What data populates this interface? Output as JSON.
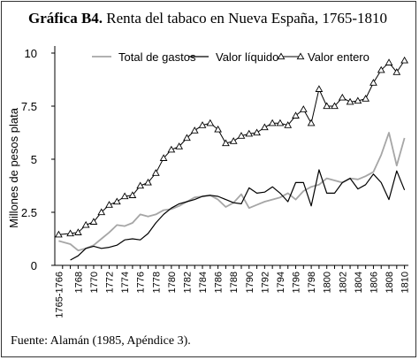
{
  "chart_data": {
    "type": "line",
    "title_bold": "Gráfica B4.",
    "title_rest": " Renta del tabaco en Nueva España, 1765-1810",
    "ylabel": "Millones de pesos plata",
    "xlabel": "",
    "source": "Fuente: Alamán (1985, Apéndice 3).",
    "ylim": [
      0,
      10
    ],
    "yticks": [
      0,
      2.5,
      5,
      7.5,
      10
    ],
    "ytick_labels": [
      "0",
      "2.5",
      "5",
      "7.5",
      "10"
    ],
    "x_tick_labels": [
      "1765-1766",
      "1768",
      "1770",
      "1772",
      "1774",
      "1776",
      "1778",
      "1780",
      "1782",
      "1784",
      "1786",
      "1788",
      "1790",
      "1792",
      "1794",
      "1796",
      "1798",
      "1800",
      "1802",
      "1804",
      "1806",
      "1808",
      "1810"
    ],
    "x_tick_positions": [
      1765.5,
      1768,
      1770,
      1772,
      1774,
      1776,
      1778,
      1780,
      1782,
      1784,
      1786,
      1788,
      1790,
      1792,
      1794,
      1796,
      1798,
      1800,
      1802,
      1804,
      1806,
      1808,
      1810
    ],
    "xlim": [
      1765,
      1810.5
    ],
    "grid": false,
    "legend_position": "top",
    "series": [
      {
        "name": "Total de gastos",
        "color": "#a6a6a6",
        "marker": "none",
        "x": [
          1765.5,
          1767,
          1768,
          1769,
          1770,
          1771,
          1772,
          1773,
          1774,
          1775,
          1776,
          1777,
          1778,
          1779,
          1780,
          1781,
          1782,
          1783,
          1784,
          1785,
          1786,
          1787,
          1788,
          1789,
          1790,
          1791,
          1792,
          1793,
          1794,
          1795,
          1796,
          1797,
          1798,
          1799,
          1800,
          1801,
          1802,
          1803,
          1804,
          1805,
          1806,
          1807,
          1808,
          1809,
          1810
        ],
        "values": [
          1.15,
          1.0,
          0.7,
          0.8,
          0.95,
          1.25,
          1.55,
          1.9,
          1.85,
          2.0,
          2.4,
          2.3,
          2.4,
          2.6,
          2.65,
          2.8,
          3.0,
          3.2,
          3.25,
          3.3,
          3.1,
          2.75,
          2.95,
          3.35,
          2.7,
          2.85,
          3.0,
          3.1,
          3.2,
          3.4,
          3.1,
          3.5,
          3.7,
          3.8,
          4.1,
          4.0,
          3.9,
          4.1,
          4.05,
          4.2,
          4.4,
          5.2,
          6.25,
          4.7,
          6.0
        ]
      },
      {
        "name": "Valor líquido",
        "color": "#000000",
        "marker": "none",
        "x": [
          1767,
          1768,
          1769,
          1770,
          1771,
          1772,
          1773,
          1774,
          1775,
          1776,
          1777,
          1778,
          1779,
          1780,
          1781,
          1782,
          1783,
          1784,
          1785,
          1786,
          1787,
          1788,
          1789,
          1790,
          1791,
          1792,
          1793,
          1794,
          1795,
          1796,
          1797,
          1798,
          1799,
          1800,
          1801,
          1802,
          1803,
          1804,
          1805,
          1806,
          1807,
          1808,
          1809,
          1810
        ],
        "values": [
          0.25,
          0.45,
          0.8,
          0.9,
          0.8,
          0.85,
          0.95,
          1.2,
          1.25,
          1.2,
          1.5,
          2.0,
          2.4,
          2.7,
          2.9,
          3.0,
          3.1,
          3.25,
          3.3,
          3.25,
          3.1,
          2.95,
          2.9,
          3.65,
          3.4,
          3.45,
          3.7,
          3.4,
          3.0,
          3.9,
          3.9,
          2.8,
          4.5,
          3.4,
          3.4,
          3.9,
          4.1,
          3.6,
          3.8,
          4.3,
          3.9,
          3.1,
          4.45,
          3.55
        ]
      },
      {
        "name": "Valor entero",
        "color": "#000000",
        "marker": "triangle",
        "x": [
          1765.5,
          1767,
          1768,
          1769,
          1770,
          1771,
          1772,
          1773,
          1774,
          1775,
          1776,
          1777,
          1778,
          1779,
          1780,
          1781,
          1782,
          1783,
          1784,
          1785,
          1786,
          1787,
          1788,
          1789,
          1790,
          1791,
          1792,
          1793,
          1794,
          1795,
          1796,
          1797,
          1798,
          1799,
          1800,
          1801,
          1802,
          1803,
          1804,
          1805,
          1806,
          1807,
          1808,
          1809,
          1810
        ],
        "values": [
          1.45,
          1.5,
          1.55,
          1.9,
          2.05,
          2.5,
          2.85,
          3.0,
          3.25,
          3.3,
          3.75,
          3.9,
          4.35,
          5.05,
          5.45,
          5.6,
          6.0,
          6.35,
          6.6,
          6.7,
          6.4,
          5.75,
          5.85,
          6.1,
          6.2,
          6.25,
          6.5,
          6.7,
          6.7,
          6.6,
          7.05,
          7.35,
          6.7,
          8.3,
          7.5,
          7.5,
          7.9,
          7.7,
          7.75,
          7.85,
          8.6,
          9.2,
          9.55,
          9.1,
          9.65
        ]
      }
    ]
  }
}
